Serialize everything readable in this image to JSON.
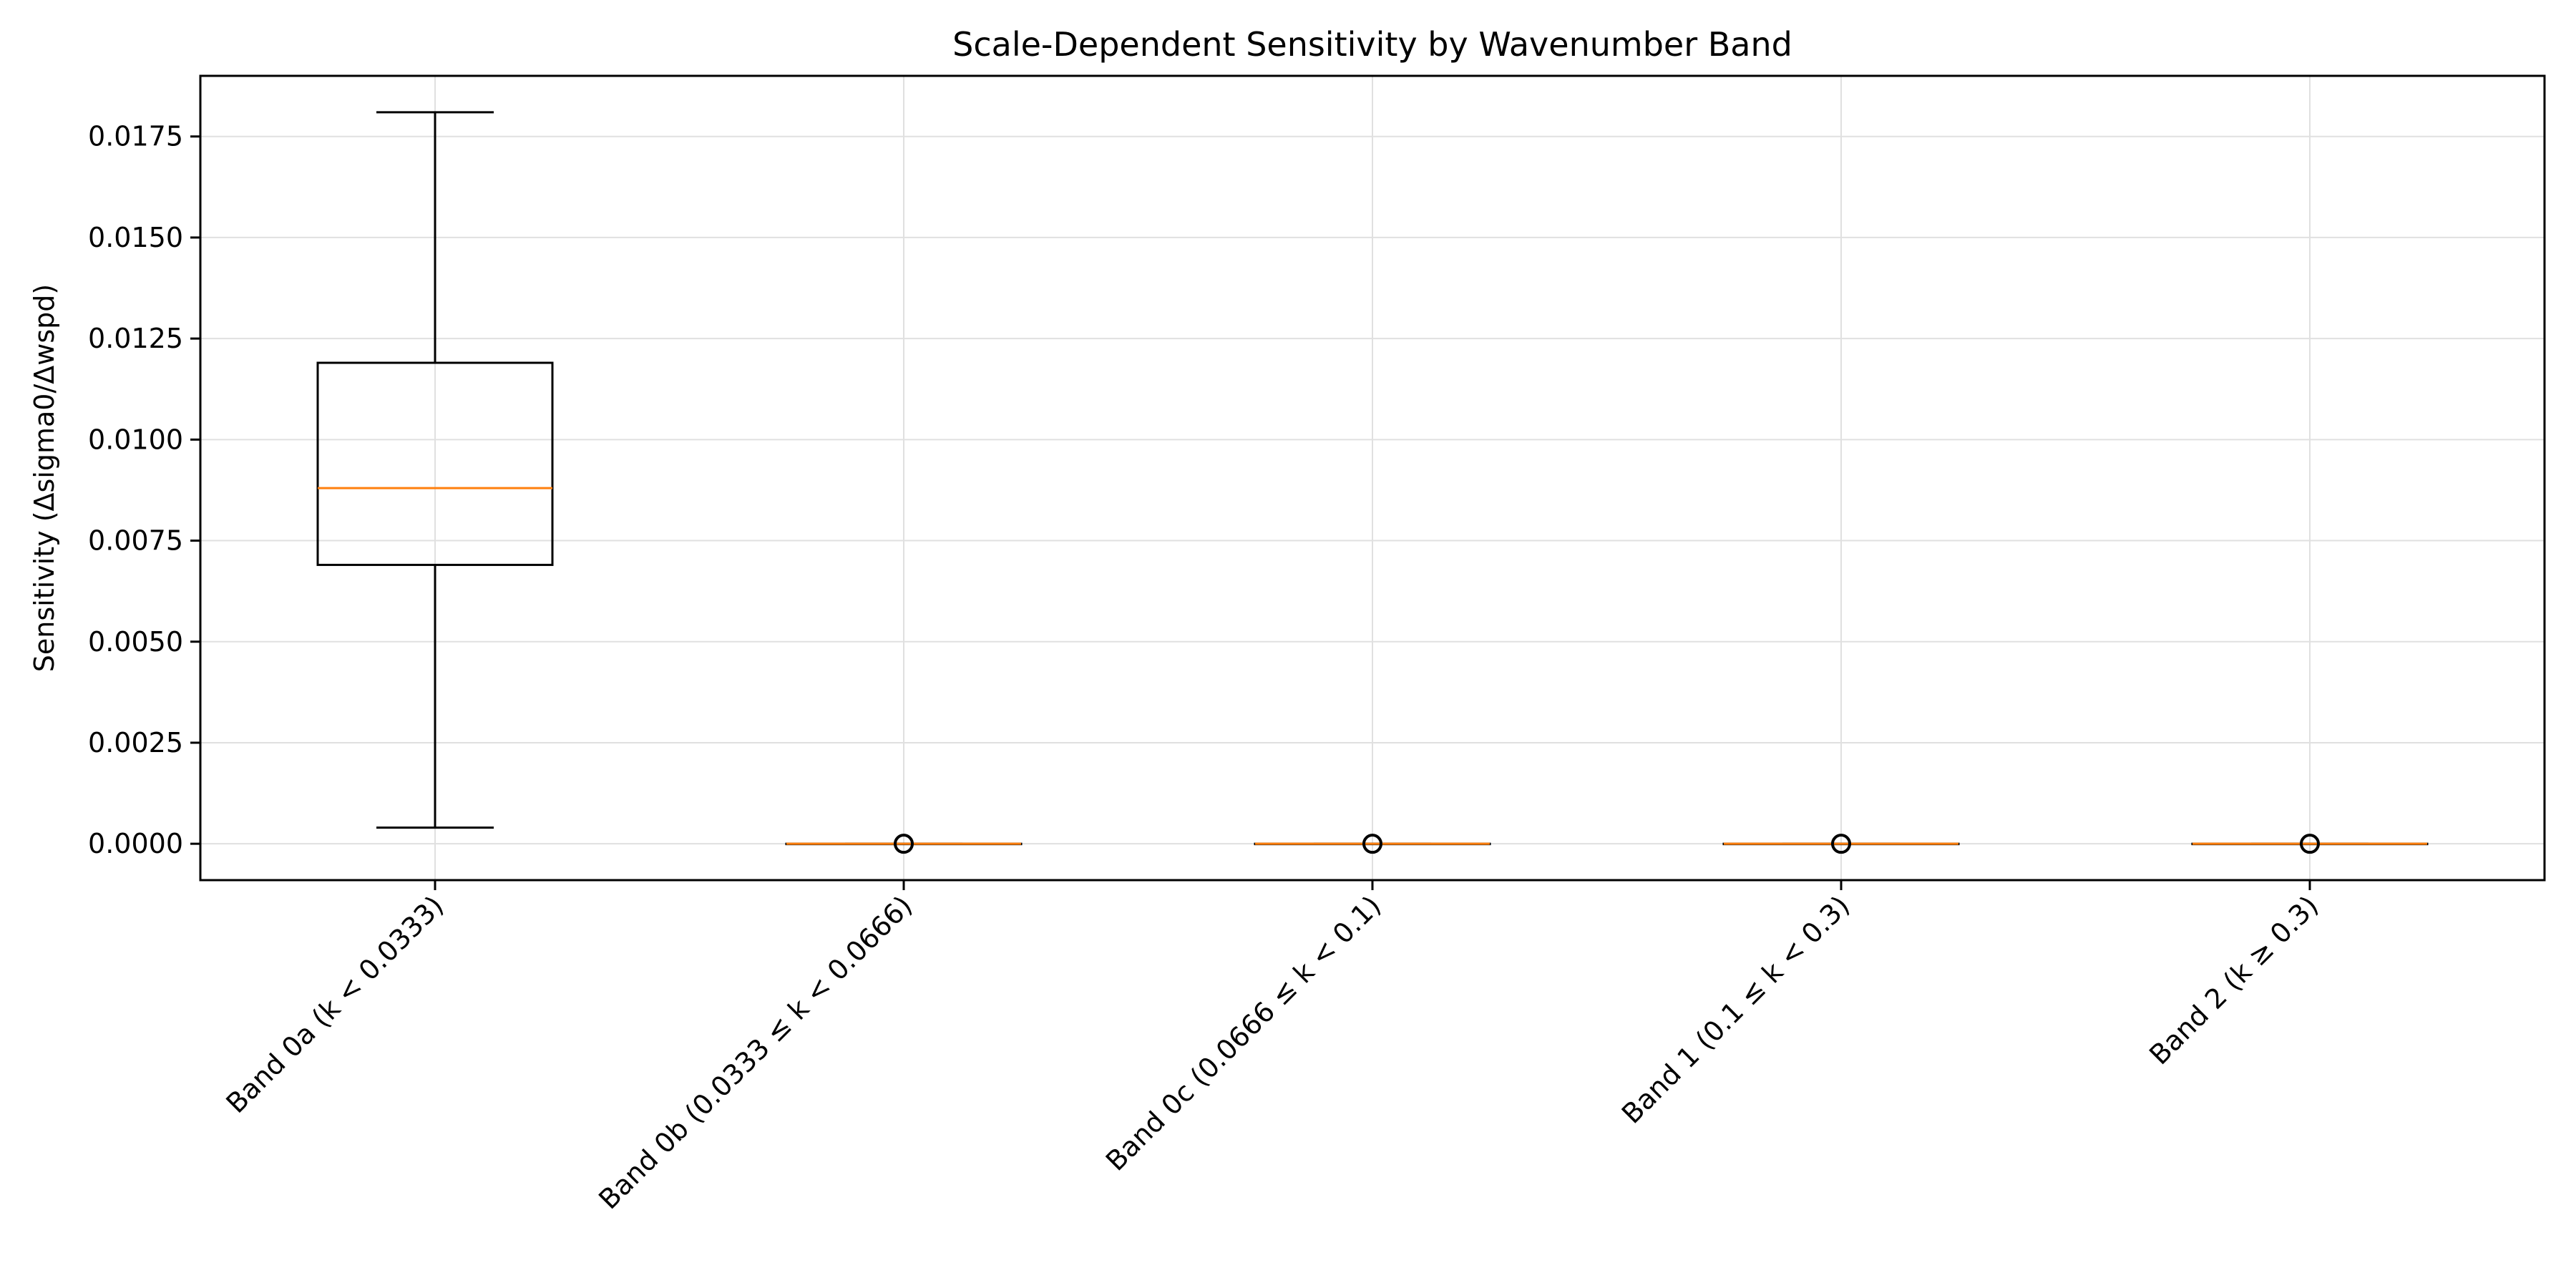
{
  "chart_data": {
    "type": "box",
    "title": "Scale-Dependent Sensitivity by Wavenumber Band",
    "xlabel": "",
    "ylabel": "Sensitivity (Δsigma0/Δwspd)",
    "ylim": [
      -0.0009,
      0.019
    ],
    "yticks": [
      "0.0000",
      "0.0025",
      "0.0050",
      "0.0075",
      "0.0100",
      "0.0125",
      "0.0150",
      "0.0175"
    ],
    "ytick_values": [
      0,
      0.0025,
      0.005,
      0.0075,
      0.01,
      0.0125,
      0.015,
      0.0175
    ],
    "grid": true,
    "categories": [
      "Band 0a (k < 0.0333)",
      "Band 0b (0.0333 ≤ k < 0.0666)",
      "Band 0c (0.0666 ≤ k < 0.1)",
      "Band 1 (0.1 ≤ k < 0.3)",
      "Band 2 (k ≥ 0.3)"
    ],
    "boxes": [
      {
        "whisker_low": 0.0004,
        "q1": 0.0069,
        "median": 0.0088,
        "q3": 0.0119,
        "whisker_high": 0.0181,
        "outliers": []
      },
      {
        "whisker_low": 0.0,
        "q1": 0.0,
        "median": 0.0,
        "q3": 0.0,
        "whisker_high": 0.0,
        "outliers": [
          0.0
        ]
      },
      {
        "whisker_low": 0.0,
        "q1": 0.0,
        "median": 0.0,
        "q3": 0.0,
        "whisker_high": 0.0,
        "outliers": [
          0.0
        ]
      },
      {
        "whisker_low": 0.0,
        "q1": 0.0,
        "median": 0.0,
        "q3": 0.0,
        "whisker_high": 0.0,
        "outliers": [
          0.0
        ]
      },
      {
        "whisker_low": 0.0,
        "q1": 0.0,
        "median": 0.0,
        "q3": 0.0,
        "whisker_high": 0.0,
        "outliers": [
          0.0
        ]
      }
    ],
    "colors": {
      "box": "#000000",
      "median": "#ff7f0e",
      "grid": "#e0e0e0",
      "outlier": "#000000"
    }
  }
}
